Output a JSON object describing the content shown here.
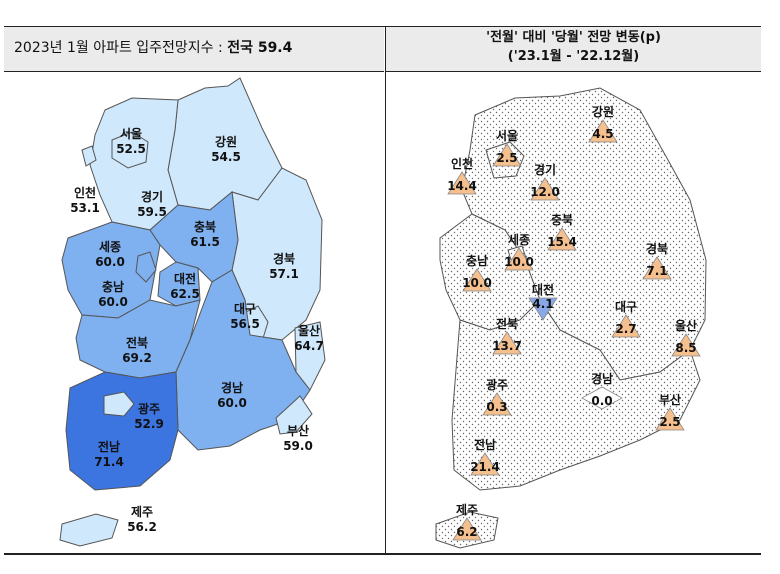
{
  "header": {
    "left_prefix": "2023년 1월 아파트 입주전망지수 :",
    "left_bold": "전국 59.4",
    "right_line1": "'전월' 대비 '당월' 전망 변동(p)",
    "right_line2": "('23.1월  -  '22.12월)"
  },
  "colors": {
    "light": "#cfe8fb",
    "mid": "#7fb0ef",
    "dark": "#3c74e0",
    "up": "#f6c08e",
    "down": "#88a8e8",
    "flat": "#ffffff"
  },
  "chart_data": [
    {
      "type": "map",
      "title": "2023년 1월 아파트 입주전망지수",
      "national": {
        "label": "전국",
        "value": 59.4
      },
      "regions": [
        {
          "name": "서울",
          "value": 52.5
        },
        {
          "name": "인천",
          "value": 53.1
        },
        {
          "name": "경기",
          "value": 59.5
        },
        {
          "name": "강원",
          "value": 54.5
        },
        {
          "name": "충북",
          "value": 61.5
        },
        {
          "name": "세종",
          "value": 60.0
        },
        {
          "name": "충남",
          "value": 60.0
        },
        {
          "name": "대전",
          "value": 62.5
        },
        {
          "name": "경북",
          "value": 57.1
        },
        {
          "name": "대구",
          "value": 56.5
        },
        {
          "name": "울산",
          "value": 64.7
        },
        {
          "name": "전북",
          "value": 69.2
        },
        {
          "name": "경남",
          "value": 60.0
        },
        {
          "name": "광주",
          "value": 52.9
        },
        {
          "name": "전남",
          "value": 71.4
        },
        {
          "name": "부산",
          "value": 59.0
        },
        {
          "name": "제주",
          "value": 56.2
        }
      ]
    },
    {
      "type": "map",
      "title": "'전월' 대비 '당월' 전망 변동(p)",
      "subtitle": "('23.1월  -  '22.12월)",
      "regions": [
        {
          "name": "서울",
          "value": 2.5
        },
        {
          "name": "인천",
          "value": 14.4
        },
        {
          "name": "경기",
          "value": 12.0
        },
        {
          "name": "강원",
          "value": 4.5
        },
        {
          "name": "충북",
          "value": 15.4
        },
        {
          "name": "세종",
          "value": 10.0
        },
        {
          "name": "충남",
          "value": 10.0
        },
        {
          "name": "대전",
          "value": 4.1,
          "direction": "down"
        },
        {
          "name": "경북",
          "value": 7.1
        },
        {
          "name": "대구",
          "value": 2.7
        },
        {
          "name": "울산",
          "value": 8.5
        },
        {
          "name": "전북",
          "value": 13.7
        },
        {
          "name": "경남",
          "value": 0.0,
          "direction": "flat"
        },
        {
          "name": "광주",
          "value": 0.3
        },
        {
          "name": "부산",
          "value": 2.5
        },
        {
          "name": "전남",
          "value": 21.4
        },
        {
          "name": "제주",
          "value": 6.2
        }
      ]
    }
  ]
}
